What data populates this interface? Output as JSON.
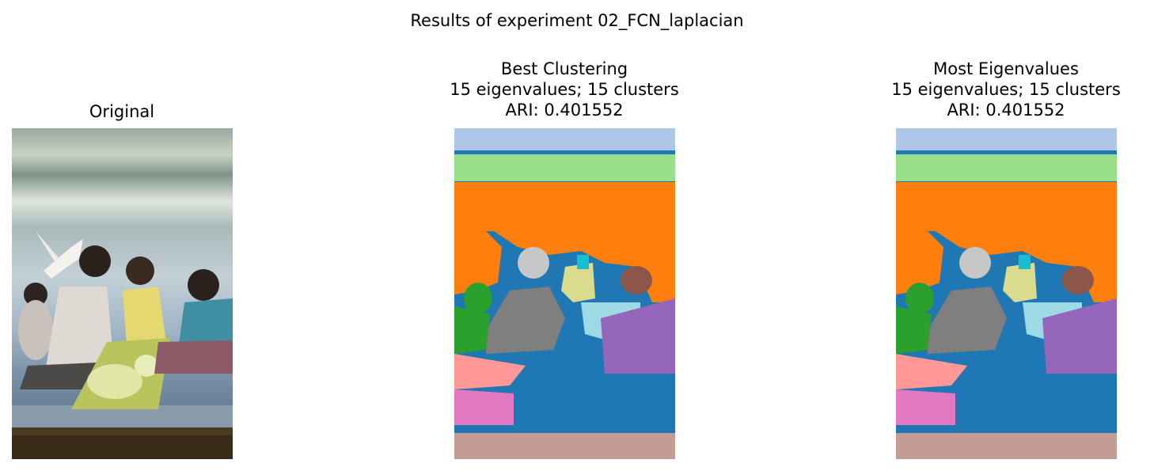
{
  "figure": {
    "suptitle": "Results of experiment 02_FCN_laplacian"
  },
  "panels": [
    {
      "id": "original",
      "title_lines": [
        "Original"
      ]
    },
    {
      "id": "best",
      "title_lines": [
        "Best Clustering",
        "15 eigenvalues; 15 clusters",
        "ARI: 0.401552"
      ]
    },
    {
      "id": "most",
      "title_lines": [
        "Most Eigenvalues",
        "15 eigenvalues; 15 clusters",
        "ARI: 0.401552"
      ]
    }
  ],
  "segmentation": {
    "eigenvalues": 15,
    "clusters": 15,
    "ari": 0.401552,
    "palette": {
      "background": "#1f77b4",
      "sky_top": "#aec7e8",
      "band_green": "#98df8a",
      "sky_orange": "#ff7f0e",
      "child": "#2ca02c",
      "head_gray": "#c7c7c7",
      "body_gray": "#7f7f7f",
      "face_yellow": "#dbdb8d",
      "hair_cyan": "#17becf",
      "cloth_lightblue": "#9edae5",
      "woman_brown": "#8c564b",
      "woman_purple": "#9467bd",
      "floor_pink": "#ff9896",
      "floor_magenta": "#e377c2",
      "ground_tan": "#c49c94"
    }
  }
}
